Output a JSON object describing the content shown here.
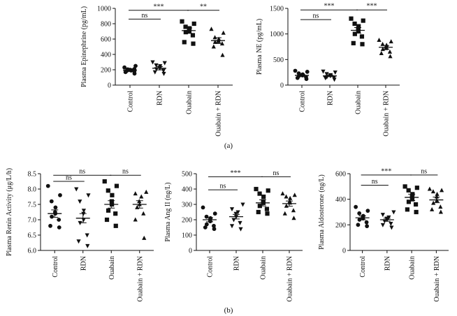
{
  "panel_labels": {
    "a": "(a)",
    "b": "(b)"
  },
  "chart_data": [
    {
      "id": "epi",
      "type": "scatter",
      "ylabel": "Plasma Epinephrine (pg/mL)",
      "ylim": [
        0,
        1000
      ],
      "yticks": [
        0,
        200,
        400,
        600,
        800,
        1000
      ],
      "categories": [
        "Control",
        "RDN",
        "Ouabain",
        "Ouabain + RDN"
      ],
      "markers": [
        "circle",
        "triangle-down",
        "square",
        "triangle-up"
      ],
      "series": [
        {
          "name": "Control",
          "mean": 195,
          "sem": 18,
          "values": [
            150,
            170,
            180,
            185,
            190,
            195,
            200,
            205,
            210,
            230,
            250
          ]
        },
        {
          "name": "RDN",
          "mean": 220,
          "sem": 22,
          "values": [
            150,
            170,
            190,
            210,
            220,
            230,
            250,
            260,
            290,
            300
          ]
        },
        {
          "name": "Ouabain",
          "mean": 710,
          "sem": 35,
          "values": [
            540,
            560,
            650,
            690,
            700,
            720,
            740,
            760,
            800,
            830
          ]
        },
        {
          "name": "Ouabain + RDN",
          "mean": 580,
          "sem": 38,
          "values": [
            390,
            500,
            540,
            560,
            570,
            580,
            600,
            620,
            680,
            730
          ]
        }
      ],
      "significance": [
        {
          "from": 0,
          "to": 2,
          "label": "***",
          "y": 975
        },
        {
          "from": 2,
          "to": 3,
          "label": "**",
          "y": 975
        },
        {
          "from": 0,
          "to": 1,
          "label": "ns",
          "y": 860
        }
      ]
    },
    {
      "id": "ne",
      "type": "scatter",
      "ylabel": "Plasma NE (pg/mL)",
      "ylim": [
        0,
        1500
      ],
      "yticks": [
        0,
        500,
        1000,
        1500
      ],
      "categories": [
        "Control",
        "RDN",
        "Ouabain",
        "Ouabain + RDN"
      ],
      "markers": [
        "circle",
        "triangle-down",
        "square",
        "triangle-up"
      ],
      "series": [
        {
          "name": "Control",
          "mean": 190,
          "sem": 15,
          "values": [
            120,
            140,
            160,
            180,
            190,
            200,
            210,
            230,
            260,
            280
          ]
        },
        {
          "name": "RDN",
          "mean": 180,
          "sem": 15,
          "values": [
            110,
            140,
            150,
            160,
            180,
            190,
            200,
            220,
            250,
            270
          ]
        },
        {
          "name": "Ouabain",
          "mean": 1070,
          "sem": 55,
          "values": [
            800,
            820,
            950,
            1000,
            1060,
            1100,
            1150,
            1200,
            1260,
            1300
          ]
        },
        {
          "name": "Ouabain + RDN",
          "mean": 740,
          "sem": 35,
          "values": [
            560,
            620,
            650,
            700,
            720,
            750,
            780,
            800,
            850,
            880
          ]
        }
      ],
      "significance": [
        {
          "from": 0,
          "to": 2,
          "label": "***",
          "y": 1470
        },
        {
          "from": 2,
          "to": 3,
          "label": "***",
          "y": 1470
        },
        {
          "from": 0,
          "to": 1,
          "label": "ns",
          "y": 1280
        }
      ]
    },
    {
      "id": "renin",
      "type": "scatter",
      "ylabel": "Plasma Renin Activity (μg/L/h)",
      "ylim": [
        6.0,
        8.5
      ],
      "yticks": [
        6.0,
        6.5,
        7.0,
        7.5,
        8.0,
        8.5
      ],
      "tick_decimals": 1,
      "categories": [
        "Control",
        "RDN",
        "Ouabain",
        "Ouabain + RDN"
      ],
      "markers": [
        "circle",
        "triangle-down",
        "square",
        "triangle-up"
      ],
      "series": [
        {
          "name": "Control",
          "mean": 7.2,
          "sem": 0.12,
          "values": [
            6.75,
            6.8,
            7.0,
            7.1,
            7.2,
            7.25,
            7.4,
            7.6,
            7.8,
            8.1
          ]
        },
        {
          "name": "RDN",
          "mean": 7.05,
          "sem": 0.15,
          "values": [
            6.15,
            6.3,
            6.5,
            6.9,
            7.0,
            7.2,
            7.3,
            7.6,
            7.8,
            8.0
          ]
        },
        {
          "name": "Ouabain",
          "mean": 7.5,
          "sem": 0.12,
          "values": [
            6.8,
            7.0,
            7.2,
            7.3,
            7.5,
            7.6,
            7.8,
            7.95,
            8.1,
            8.25
          ]
        },
        {
          "name": "Ouabain + RDN",
          "mean": 7.5,
          "sem": 0.12,
          "values": [
            6.4,
            7.0,
            7.2,
            7.4,
            7.5,
            7.6,
            7.75,
            7.85,
            7.9
          ]
        }
      ],
      "significance": [
        {
          "from": 0,
          "to": 2,
          "label": "ns",
          "y": 8.45
        },
        {
          "from": 2,
          "to": 3,
          "label": "ns",
          "y": 8.45
        },
        {
          "from": 0,
          "to": 1,
          "label": "ns",
          "y": 8.25
        }
      ]
    },
    {
      "id": "ang",
      "type": "scatter",
      "ylabel": "Plasma Ang II (ng/L)",
      "ylim": [
        0,
        500
      ],
      "yticks": [
        0,
        100,
        200,
        300,
        400,
        500
      ],
      "categories": [
        "Control",
        "RDN",
        "Ouabain",
        "Ouabain + RDN"
      ],
      "markers": [
        "circle",
        "triangle-down",
        "square",
        "triangle-up"
      ],
      "series": [
        {
          "name": "Control",
          "mean": 200,
          "sem": 13,
          "values": [
            140,
            150,
            160,
            170,
            190,
            200,
            210,
            220,
            240,
            280
          ]
        },
        {
          "name": "RDN",
          "mean": 220,
          "sem": 15,
          "values": [
            140,
            160,
            180,
            200,
            220,
            240,
            250,
            270,
            300
          ]
        },
        {
          "name": "Ouabain",
          "mean": 310,
          "sem": 20,
          "values": [
            240,
            250,
            270,
            290,
            310,
            320,
            350,
            370,
            390,
            400
          ]
        },
        {
          "name": "Ouabain + RDN",
          "mean": 305,
          "sem": 17,
          "values": [
            210,
            240,
            260,
            290,
            310,
            320,
            340,
            350,
            360,
            370
          ]
        }
      ],
      "significance": [
        {
          "from": 0,
          "to": 2,
          "label": "***",
          "y": 480
        },
        {
          "from": 2,
          "to": 3,
          "label": "ns",
          "y": 480
        },
        {
          "from": 0,
          "to": 1,
          "label": "ns",
          "y": 395
        }
      ]
    },
    {
      "id": "aldo",
      "type": "scatter",
      "ylabel": "Plasma Aldosterone (ng/L)",
      "ylim": [
        0,
        600
      ],
      "yticks": [
        0,
        200,
        400,
        600
      ],
      "categories": [
        "Control",
        "RDN",
        "Ouabain",
        "Ouabain + RDN"
      ],
      "markers": [
        "circle",
        "triangle-down",
        "square",
        "triangle-up"
      ],
      "series": [
        {
          "name": "Control",
          "mean": 255,
          "sem": 15,
          "values": [
            190,
            200,
            220,
            240,
            250,
            260,
            270,
            290,
            310,
            340
          ]
        },
        {
          "name": "RDN",
          "mean": 240,
          "sem": 12,
          "values": [
            180,
            200,
            210,
            230,
            240,
            250,
            260,
            280,
            300
          ]
        },
        {
          "name": "Ouabain",
          "mean": 415,
          "sem": 25,
          "values": [
            300,
            320,
            360,
            380,
            400,
            420,
            440,
            470,
            490,
            500
          ]
        },
        {
          "name": "Ouabain + RDN",
          "mean": 395,
          "sem": 22,
          "values": [
            300,
            320,
            340,
            370,
            390,
            420,
            440,
            460,
            470,
            480
          ]
        }
      ],
      "significance": [
        {
          "from": 0,
          "to": 2,
          "label": "***",
          "y": 590
        },
        {
          "from": 2,
          "to": 3,
          "label": "ns",
          "y": 590
        },
        {
          "from": 0,
          "to": 1,
          "label": "ns",
          "y": 510
        }
      ]
    }
  ]
}
